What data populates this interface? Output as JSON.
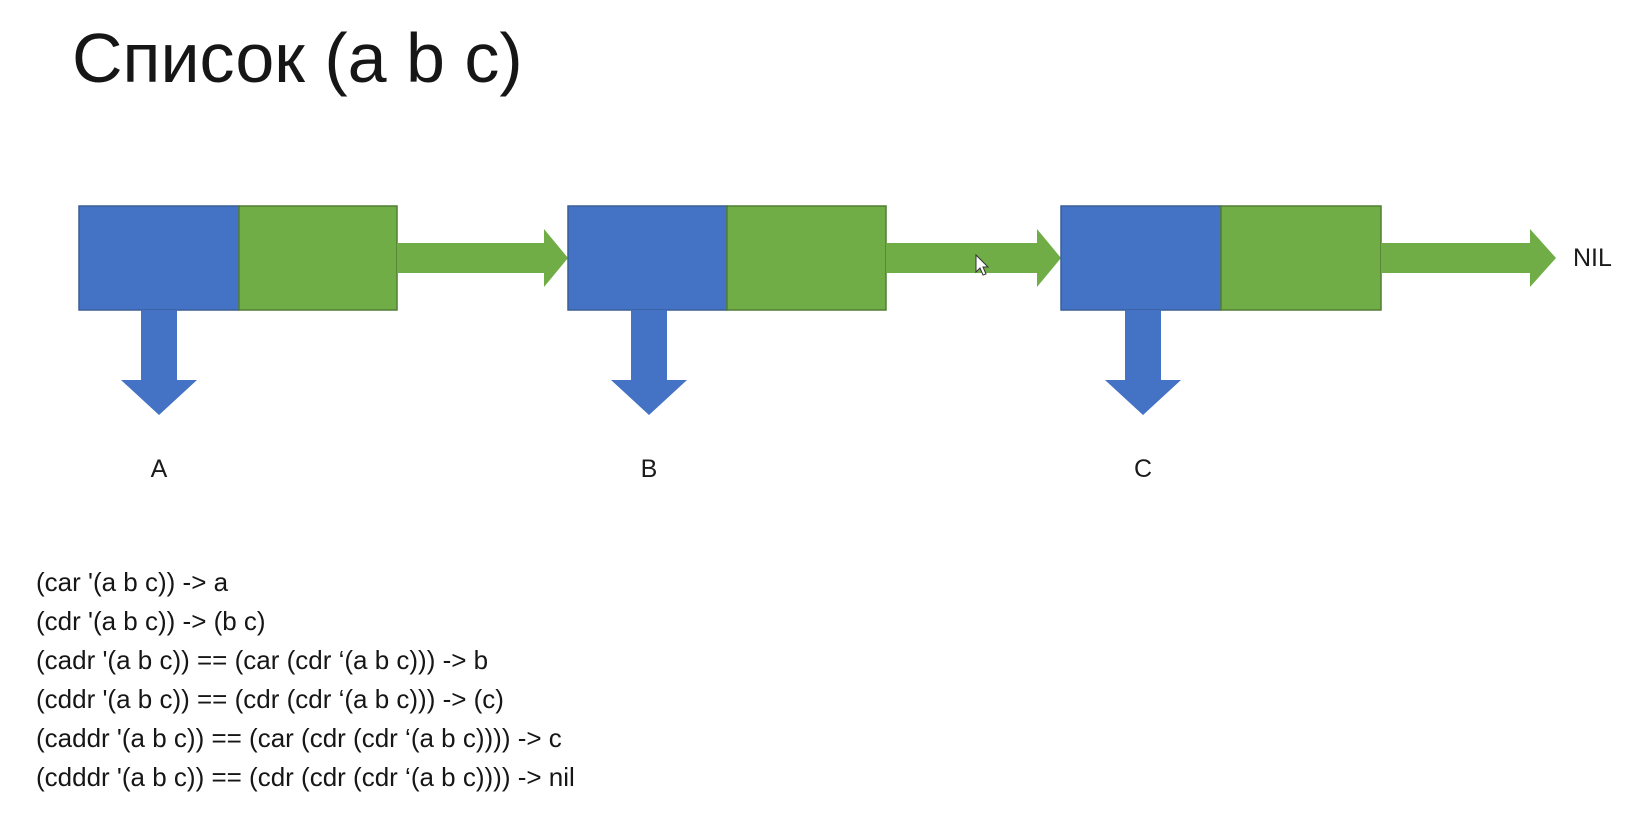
{
  "title": "Список (a b c)",
  "colors": {
    "car_cell": "#4472C4",
    "cdr_cell": "#70AD47",
    "car_arrow": "#4472C4",
    "cdr_arrow": "#70AD47",
    "border": "#3a5e97"
  },
  "nodes": [
    {
      "car_label": "A"
    },
    {
      "car_label": "B"
    },
    {
      "car_label": "C"
    }
  ],
  "terminator": "NIL",
  "code_lines": [
    "(car '(a b c)) -> a",
    "(cdr '(a b c)) -> (b c)",
    "(cadr '(a b c)) == (car (cdr ‘(a b c))) -> b",
    "(cddr '(a b c)) == (cdr (cdr ‘(a b c))) -> (c)",
    "(caddr '(a b c)) == (car (cdr (cdr ‘(a b c)))) -> c",
    "(cdddr '(a b c)) == (cdr (cdr (cdr ‘(a b c)))) -> nil"
  ]
}
